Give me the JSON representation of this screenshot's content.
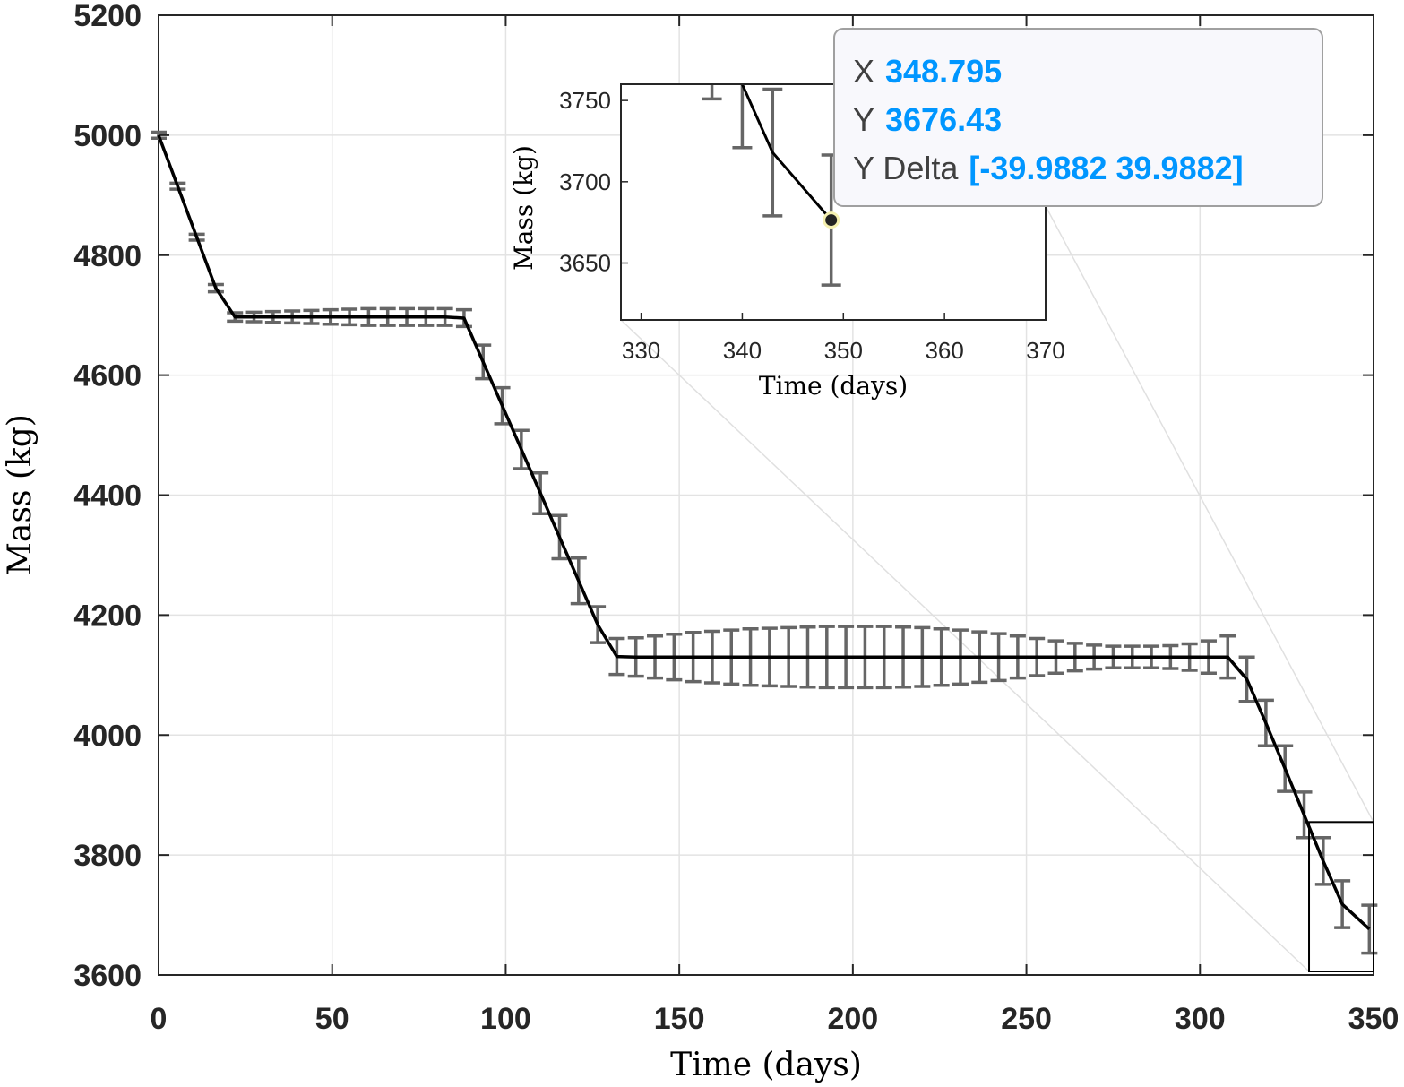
{
  "chart_data": [
    {
      "type": "line",
      "subtype": "errorbar",
      "xlabel": "Time (days)",
      "ylabel": "Mass (kg)",
      "xlim": [
        0,
        350
      ],
      "ylim": [
        3600,
        5200
      ],
      "xticks": [
        0,
        50,
        100,
        150,
        200,
        250,
        300,
        350
      ],
      "yticks": [
        3600,
        3800,
        4000,
        4200,
        4400,
        4600,
        4800,
        5000,
        5200
      ],
      "grid": true,
      "line_color": "#000000",
      "errorbar_color": "#666666",
      "series": [
        {
          "x": [
            0,
            5.5,
            11,
            16.5,
            22,
            27.5,
            33,
            38.5,
            44,
            49.5,
            55,
            60.5,
            66,
            71.5,
            77,
            82.5,
            88,
            93.5,
            99,
            104.5,
            110,
            115.5,
            121,
            126.5,
            132,
            137.5,
            143,
            148.5,
            154,
            159.5,
            165,
            170.5,
            176,
            181.5,
            187,
            192.5,
            198,
            203.5,
            209,
            214.5,
            220,
            225.5,
            231,
            236.5,
            242,
            247.5,
            253,
            258.5,
            264,
            269.5,
            275,
            280.5,
            286,
            291.5,
            297,
            302.5,
            308,
            313.5,
            319,
            324.5,
            330,
            335.5,
            341,
            348.795
          ],
          "y": [
            5000,
            4915,
            4830,
            4745,
            4697,
            4697,
            4697,
            4697,
            4697,
            4697,
            4697,
            4697,
            4697,
            4697,
            4697,
            4697,
            4695,
            4622,
            4549,
            4476,
            4403,
            4330,
            4257,
            4184,
            4131,
            4130,
            4130,
            4130,
            4130,
            4130,
            4130,
            4130,
            4130,
            4130,
            4130,
            4130,
            4130,
            4130,
            4130,
            4130,
            4130,
            4130,
            4130,
            4130,
            4130,
            4130,
            4130,
            4130,
            4130,
            4130,
            4130,
            4130,
            4130,
            4130,
            4130,
            4130,
            4130,
            4093,
            4020,
            3944,
            3867,
            3790,
            3718,
            3676.43
          ],
          "err": [
            5,
            5,
            5,
            6,
            7,
            8,
            9,
            10,
            11,
            12,
            13,
            14,
            14,
            14,
            14,
            14,
            14,
            28,
            30,
            32,
            34,
            36,
            38,
            30,
            30,
            32,
            35,
            38,
            41,
            43,
            45,
            47,
            48,
            49,
            50,
            51,
            51,
            51,
            51,
            50,
            49,
            47,
            45,
            42,
            39,
            35,
            31,
            27,
            23,
            20,
            18,
            18,
            18,
            19,
            22,
            27,
            35,
            37,
            38,
            38,
            38,
            39,
            39,
            39.99
          ]
        }
      ],
      "zoom_box": {
        "xlim": [
          326,
          350
        ],
        "ylim": [
          3600,
          3855
        ]
      }
    },
    {
      "type": "line",
      "subtype": "errorbar",
      "role": "inset",
      "xlabel": "Time (days)",
      "ylabel": "Mass (kg)",
      "xlim": [
        328,
        370
      ],
      "ylim": [
        3615,
        3760
      ],
      "xticks": [
        330,
        340,
        350,
        360,
        370
      ],
      "yticks": [
        3650,
        3700,
        3750
      ],
      "grid": false,
      "series": [
        {
          "x": [
            337,
            340,
            343,
            348.795
          ],
          "y": [
            3790,
            3760,
            3718,
            3676.43
          ],
          "err": [
            39,
            39,
            39,
            39.99
          ]
        }
      ],
      "highlight_point": {
        "x": 348.795,
        "y": 3676.43
      }
    }
  ],
  "datatip": {
    "x_key": "X",
    "x_value": "348.795",
    "y_key": "Y",
    "y_value": "3676.43",
    "delta_key": "Y Delta",
    "delta_value": "[-39.9882 39.9882]",
    "value_color": "#0096FF"
  }
}
